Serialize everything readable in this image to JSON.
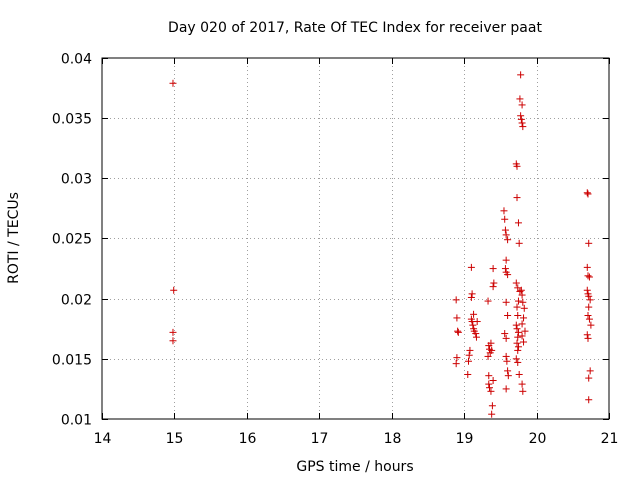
{
  "chart_data": {
    "type": "scatter",
    "title": "Day 020 of 2017, Rate Of TEC Index for receiver paat",
    "xlabel": "GPS time / hours",
    "ylabel": "ROTI / TECUs",
    "xlim": [
      14,
      21
    ],
    "ylim": [
      0.01,
      0.04
    ],
    "xticks": [
      14,
      15,
      16,
      17,
      18,
      19,
      20,
      21
    ],
    "xtick_labels": [
      "14",
      "15",
      "16",
      "17",
      "18",
      "19",
      "20",
      "21"
    ],
    "yticks": [
      0.01,
      0.015,
      0.02,
      0.025,
      0.03,
      0.035,
      0.04
    ],
    "ytick_labels": [
      "0.01",
      "0.015",
      "0.02",
      "0.025",
      "0.03",
      "0.035",
      "0.04"
    ],
    "grid": true,
    "marker": "+",
    "color": "#cc0000",
    "series": [
      {
        "name": "ROTI",
        "points": [
          [
            14.98,
            0.0379
          ],
          [
            14.99,
            0.0207
          ],
          [
            14.98,
            0.0172
          ],
          [
            14.98,
            0.0165
          ],
          [
            18.89,
            0.0199
          ],
          [
            18.9,
            0.0184
          ],
          [
            18.91,
            0.0173
          ],
          [
            18.92,
            0.0172
          ],
          [
            18.9,
            0.0151
          ],
          [
            18.89,
            0.0146
          ],
          [
            19.05,
            0.0137
          ],
          [
            19.06,
            0.0148
          ],
          [
            19.07,
            0.0153
          ],
          [
            19.08,
            0.0157
          ],
          [
            19.1,
            0.0201
          ],
          [
            19.11,
            0.0204
          ],
          [
            19.1,
            0.0226
          ],
          [
            19.1,
            0.0183
          ],
          [
            19.11,
            0.0181
          ],
          [
            19.12,
            0.0178
          ],
          [
            19.13,
            0.0175
          ],
          [
            19.14,
            0.0173
          ],
          [
            19.16,
            0.0171
          ],
          [
            19.17,
            0.0168
          ],
          [
            19.18,
            0.0181
          ],
          [
            19.13,
            0.0187
          ],
          [
            19.33,
            0.0198
          ],
          [
            19.34,
            0.0161
          ],
          [
            19.35,
            0.0158
          ],
          [
            19.36,
            0.0155
          ],
          [
            19.33,
            0.0152
          ],
          [
            19.34,
            0.0136
          ],
          [
            19.34,
            0.0129
          ],
          [
            19.35,
            0.0126
          ],
          [
            19.37,
            0.0123
          ],
          [
            19.39,
            0.0111
          ],
          [
            19.38,
            0.0104
          ],
          [
            19.4,
            0.0225
          ],
          [
            19.41,
            0.0213
          ],
          [
            19.4,
            0.021
          ],
          [
            19.37,
            0.0163
          ],
          [
            19.38,
            0.0157
          ],
          [
            19.4,
            0.0132
          ],
          [
            19.55,
            0.0273
          ],
          [
            19.56,
            0.0266
          ],
          [
            19.57,
            0.0257
          ],
          [
            19.58,
            0.0253
          ],
          [
            19.6,
            0.0249
          ],
          [
            19.58,
            0.0232
          ],
          [
            19.57,
            0.0225
          ],
          [
            19.58,
            0.0222
          ],
          [
            19.6,
            0.022
          ],
          [
            19.58,
            0.0197
          ],
          [
            19.6,
            0.0186
          ],
          [
            19.56,
            0.0171
          ],
          [
            19.58,
            0.0167
          ],
          [
            19.58,
            0.0152
          ],
          [
            19.59,
            0.0148
          ],
          [
            19.6,
            0.014
          ],
          [
            19.61,
            0.0136
          ],
          [
            19.58,
            0.0125
          ],
          [
            19.72,
            0.0312
          ],
          [
            19.73,
            0.031
          ],
          [
            19.73,
            0.0284
          ],
          [
            19.75,
            0.0263
          ],
          [
            19.76,
            0.0246
          ],
          [
            19.72,
            0.0213
          ],
          [
            19.74,
            0.0209
          ],
          [
            19.77,
            0.0206
          ],
          [
            19.75,
            0.0198
          ],
          [
            19.73,
            0.0193
          ],
          [
            19.74,
            0.0186
          ],
          [
            19.72,
            0.0178
          ],
          [
            19.73,
            0.0175
          ],
          [
            19.75,
            0.0172
          ],
          [
            19.74,
            0.0168
          ],
          [
            19.73,
            0.0163
          ],
          [
            19.75,
            0.016
          ],
          [
            19.74,
            0.0157
          ],
          [
            19.72,
            0.015
          ],
          [
            19.74,
            0.0147
          ],
          [
            19.76,
            0.0137
          ],
          [
            19.78,
            0.0386
          ],
          [
            19.77,
            0.0366
          ],
          [
            19.8,
            0.0361
          ],
          [
            19.78,
            0.0352
          ],
          [
            19.79,
            0.0349
          ],
          [
            19.8,
            0.0346
          ],
          [
            19.81,
            0.0343
          ],
          [
            19.8,
            0.0203
          ],
          [
            19.81,
            0.0197
          ],
          [
            19.8,
            0.0179
          ],
          [
            19.8,
            0.0169
          ],
          [
            19.82,
            0.0164
          ],
          [
            19.8,
            0.0129
          ],
          [
            19.81,
            0.0123
          ],
          [
            19.79,
            0.0207
          ],
          [
            19.83,
            0.0192
          ],
          [
            19.82,
            0.0184
          ],
          [
            19.84,
            0.0173
          ],
          [
            20.7,
            0.0288
          ],
          [
            20.71,
            0.0287
          ],
          [
            20.72,
            0.0246
          ],
          [
            20.7,
            0.0226
          ],
          [
            20.71,
            0.0219
          ],
          [
            20.73,
            0.0218
          ],
          [
            20.7,
            0.0207
          ],
          [
            20.71,
            0.0204
          ],
          [
            20.72,
            0.0202
          ],
          [
            20.74,
            0.0199
          ],
          [
            20.72,
            0.0193
          ],
          [
            20.71,
            0.0186
          ],
          [
            20.73,
            0.0183
          ],
          [
            20.75,
            0.0178
          ],
          [
            20.7,
            0.017
          ],
          [
            20.71,
            0.0167
          ],
          [
            20.74,
            0.014
          ],
          [
            20.72,
            0.0134
          ],
          [
            20.72,
            0.0116
          ]
        ]
      }
    ]
  }
}
